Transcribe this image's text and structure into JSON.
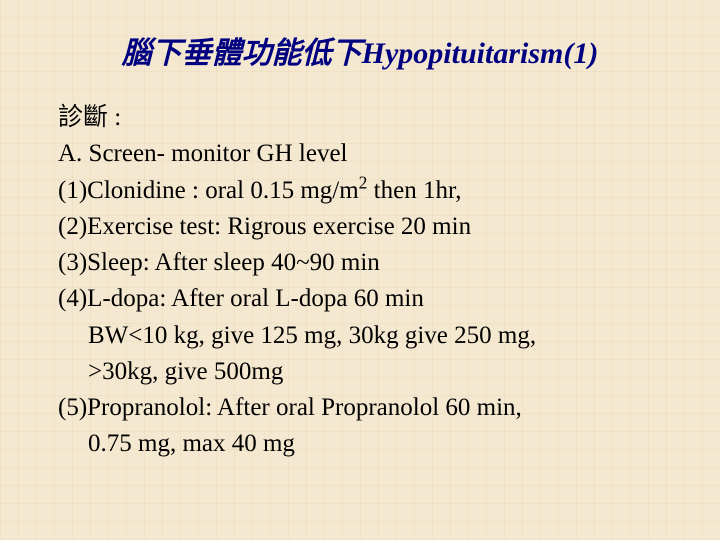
{
  "slide": {
    "title": "腦下垂體功能低下Hypopituitarism(1)",
    "title_color": "#000080",
    "title_fontsize": 30,
    "title_bold": true,
    "title_italic": true,
    "body_fontsize": 25,
    "body_color": "#000000",
    "background_color": "#f5e8d0",
    "grid_color": "rgba(210,180,140,0.15)",
    "lines": [
      {
        "text": "診斷 :",
        "indent": false
      },
      {
        "text": "A. Screen- monitor GH level",
        "indent": false
      },
      {
        "text": "(1)Clonidine : oral 0.15 mg/m² then 1hr,",
        "indent": false,
        "has_sup": true,
        "pre_sup": "(1)Clonidine : oral 0.15 mg/m",
        "sup": "2",
        "post_sup": " then 1hr,"
      },
      {
        "text": "(2)Exercise test: Rigrous exercise 20 min",
        "indent": false
      },
      {
        "text": "(3)Sleep: After sleep 40~90 min",
        "indent": false
      },
      {
        "text": "(4)L-dopa: After oral L-dopa 60 min",
        "indent": false
      },
      {
        "text": "BW<10 kg, give 125 mg, 30kg give 250 mg,",
        "indent": true
      },
      {
        "text": ">30kg, give 500mg",
        "indent": true
      },
      {
        "text": "(5)Propranolol: After oral Propranolol 60 min,",
        "indent": false
      },
      {
        "text": "0.75 mg, max 40 mg",
        "indent": true
      }
    ]
  }
}
